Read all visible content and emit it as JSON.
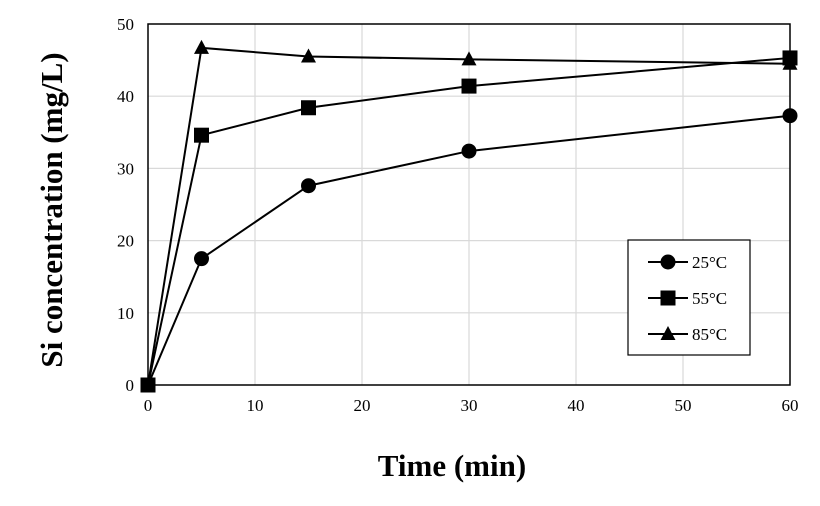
{
  "chart_data": {
    "type": "line",
    "title": "",
    "xlabel": "Time (min)",
    "ylabel": "Si concentration (mg/L)",
    "xlim": [
      0,
      60
    ],
    "ylim": [
      0,
      50
    ],
    "xticks": [
      "0",
      "10",
      "20",
      "30",
      "40",
      "50",
      "60"
    ],
    "yticks": [
      "0",
      "10",
      "20",
      "30",
      "40",
      "50"
    ],
    "grid": true,
    "legend_position": "bottom-right",
    "x": [
      0,
      5,
      15,
      30,
      60
    ],
    "series": [
      {
        "name": "25°C",
        "marker": "circle",
        "values": [
          0,
          17.5,
          27.6,
          32.4,
          37.3
        ]
      },
      {
        "name": "55°C",
        "marker": "square",
        "values": [
          0,
          34.6,
          38.4,
          41.4,
          45.3
        ]
      },
      {
        "name": "85°C",
        "marker": "triangle",
        "values": [
          0,
          46.7,
          45.5,
          45.1,
          44.5
        ]
      }
    ],
    "colors": {
      "line": "#000000",
      "grid": "#d9d9d9"
    }
  }
}
